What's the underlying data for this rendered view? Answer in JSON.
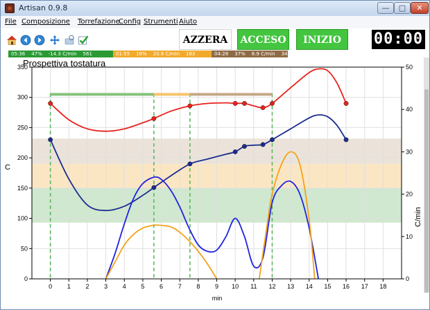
{
  "window": {
    "title": "Artisan 0.9.8"
  },
  "menu": [
    "File",
    "Composizione",
    "Torrefazione",
    "Config",
    "Strumenti",
    "Aiuto"
  ],
  "toolbar": {
    "icons": [
      "home-icon",
      "back-icon",
      "forward-icon",
      "move-icon",
      "zoom-icon",
      "check-icon"
    ],
    "azzera": "AZZERA",
    "acceso": "ACCESO",
    "inizio": "INIZIO",
    "timer": "00:00"
  },
  "phases": [
    {
      "name": "dry",
      "color": "#2b9a35",
      "time": "05:36",
      "percent": "47%",
      "rate": "-14.3 C/min",
      "area": "561"
    },
    {
      "name": "maillard",
      "color": "#f2aa2c",
      "time": "01:55",
      "percent": "16%",
      "rate": "20.8 C/min",
      "area": "183"
    },
    {
      "name": "development",
      "color": "#8f6b45",
      "time": "04:28",
      "percent": "37%",
      "rate": "8.9 C/min",
      "area": "349"
    }
  ],
  "chart_data": {
    "type": "line",
    "title": "Prospettiva tostatura",
    "xlabel": "min",
    "ylabel": "C",
    "y2label": "C/min",
    "xlim": [
      -1,
      19
    ],
    "ylim": [
      0,
      350
    ],
    "y2lim": [
      0,
      50
    ],
    "xticks": [
      0,
      1,
      2,
      3,
      4,
      5,
      6,
      7,
      8,
      9,
      10,
      11,
      12,
      13,
      14,
      15,
      16,
      17,
      18
    ],
    "yticks": [
      0,
      50,
      100,
      150,
      200,
      250,
      300,
      350
    ],
    "y2ticks": [
      0,
      10,
      20,
      30,
      40,
      50
    ],
    "grid": true,
    "phase_bands": [
      {
        "name": "dry",
        "y_from": 93,
        "y_to": 150,
        "color": "#cfe8cf"
      },
      {
        "name": "maillard",
        "y_from": 150,
        "y_to": 190,
        "color": "#fbe6c4"
      },
      {
        "name": "development",
        "y_from": 190,
        "y_to": 232,
        "color": "#ebe3da"
      }
    ],
    "event_lines_x": [
      0,
      5.6,
      7.55,
      12
    ],
    "phase_lines": [
      {
        "x_from": 0,
        "x_to": 5.6,
        "y": 305,
        "color": "#86c27b"
      },
      {
        "x_from": 5.6,
        "x_to": 7.55,
        "y": 305,
        "color": "#f6c56d"
      },
      {
        "x_from": 7.55,
        "x_to": 12,
        "y": 305,
        "color": "#c4a888"
      }
    ],
    "series": [
      {
        "axis": "left",
        "color": "#e8221b",
        "x": [
          0,
          1,
          2,
          3,
          4,
          5,
          5.6,
          6.5,
          7.55,
          8.5,
          9.5,
          10,
          10.5,
          11,
          11.5,
          12,
          13,
          14,
          14.5,
          15,
          15.5,
          16
        ],
        "y": [
          290,
          263,
          248,
          244,
          248,
          258,
          265,
          277,
          286,
          290,
          291,
          290,
          290,
          286,
          283,
          290,
          316,
          341,
          347,
          344,
          324,
          290
        ],
        "markers": [
          [
            0,
            290
          ],
          [
            5.6,
            265
          ],
          [
            7.55,
            286
          ],
          [
            10,
            290
          ],
          [
            10.5,
            290
          ],
          [
            11.5,
            283
          ],
          [
            12,
            290
          ],
          [
            16,
            290
          ]
        ]
      },
      {
        "axis": "left",
        "color": "#1b2c8f",
        "x": [
          0,
          1,
          2,
          3,
          4,
          5,
          5.6,
          6.5,
          7.55,
          8.5,
          9.5,
          10,
          10.5,
          11,
          11.5,
          12,
          13,
          14,
          14.5,
          15,
          15.5,
          16
        ],
        "y": [
          230,
          165,
          122,
          113,
          120,
          138,
          151,
          170,
          190,
          198,
          206,
          210,
          219,
          221,
          222,
          230,
          248,
          266,
          271,
          268,
          254,
          230
        ],
        "markers": [
          [
            0,
            230
          ],
          [
            5.6,
            151
          ],
          [
            7.55,
            190
          ],
          [
            10,
            210
          ],
          [
            10.5,
            219
          ],
          [
            11.5,
            222
          ],
          [
            12,
            230
          ],
          [
            16,
            230
          ]
        ]
      },
      {
        "axis": "right",
        "color": "#1f23e0",
        "x": [
          3,
          3.5,
          4,
          4.5,
          5,
          5.6,
          6,
          6.5,
          7,
          7.5,
          8,
          8.5,
          9,
          9.5,
          10,
          10.5,
          11,
          11.5,
          12,
          12.5,
          13,
          13.5,
          14,
          14.5
        ],
        "y": [
          0,
          6,
          13,
          19,
          22.5,
          24,
          23.5,
          21,
          17,
          12,
          8,
          6.5,
          6.8,
          10,
          14.3,
          10,
          3,
          5,
          18,
          22,
          23,
          20,
          12,
          0
        ]
      },
      {
        "axis": "right",
        "color": "#f4a21a",
        "x": [
          3,
          3.5,
          4,
          4.5,
          5,
          5.5,
          5.8,
          6.5,
          7,
          7.5,
          8,
          8.5,
          9
        ],
        "y": [
          0,
          4,
          8,
          10.5,
          12,
          12.6,
          12.7,
          12.3,
          11,
          9,
          6.5,
          3.5,
          0
        ]
      },
      {
        "axis": "right",
        "color": "#f4a21a",
        "x": [
          11.3,
          11.7,
          12,
          12.5,
          13,
          13.5,
          14,
          14.3
        ],
        "y": [
          0,
          12,
          20,
          27,
          30,
          27,
          14,
          0
        ]
      }
    ]
  }
}
